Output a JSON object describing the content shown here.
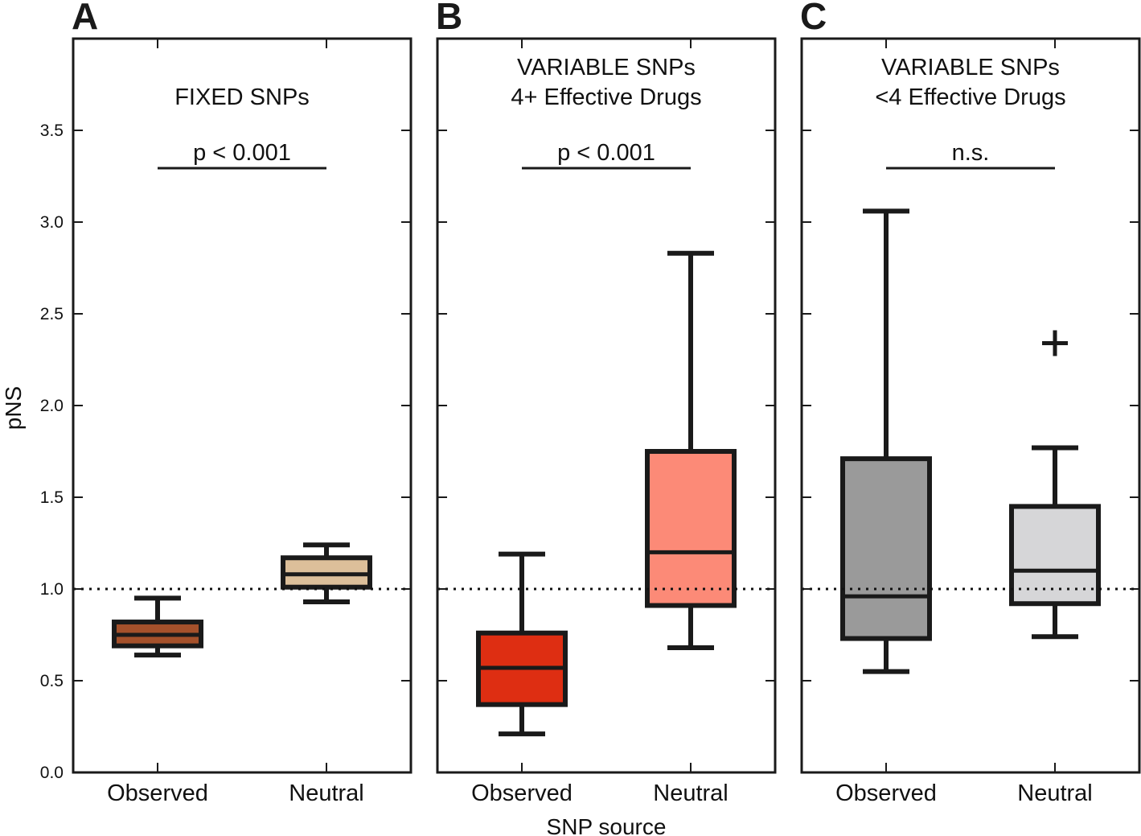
{
  "figure": {
    "ylabel": "pNS",
    "xlabel": "SNP source",
    "reference_line": 1.0
  },
  "chart_data": [
    {
      "type": "box",
      "panel": "A",
      "title_lines": [
        "FIXED SNPs"
      ],
      "significance": "p < 0.001",
      "ylabel": "pNS",
      "xlabel": "",
      "ylim": [
        0,
        4.0
      ],
      "yticks": [
        "0.0",
        "0.5",
        "1.0",
        "1.5",
        "2.0",
        "2.5",
        "3.0",
        "3.5"
      ],
      "categories": [
        "Observed",
        "Neutral"
      ],
      "boxes": [
        {
          "name": "Observed",
          "whisker_low": 0.64,
          "q1": 0.69,
          "median": 0.75,
          "q3": 0.82,
          "whisker_high": 0.95,
          "outliers": [],
          "color": "#a5512b"
        },
        {
          "name": "Neutral",
          "whisker_low": 0.93,
          "q1": 1.01,
          "median": 1.08,
          "q3": 1.17,
          "whisker_high": 1.24,
          "outliers": [],
          "color": "#dcbf9a"
        }
      ]
    },
    {
      "type": "box",
      "panel": "B",
      "title_lines": [
        "VARIABLE SNPs",
        "4+ Effective Drugs"
      ],
      "significance": "p < 0.001",
      "ylabel": "",
      "xlabel": "SNP source",
      "ylim": [
        0,
        4.0
      ],
      "yticks": [],
      "categories": [
        "Observed",
        "Neutral"
      ],
      "boxes": [
        {
          "name": "Observed",
          "whisker_low": 0.21,
          "q1": 0.37,
          "median": 0.57,
          "q3": 0.76,
          "whisker_high": 1.19,
          "outliers": [],
          "color": "#de2e12"
        },
        {
          "name": "Neutral",
          "whisker_low": 0.68,
          "q1": 0.91,
          "median": 1.2,
          "q3": 1.75,
          "whisker_high": 2.83,
          "outliers": [],
          "color": "#fc8a77"
        }
      ]
    },
    {
      "type": "box",
      "panel": "C",
      "title_lines": [
        "VARIABLE SNPs",
        "<4 Effective Drugs"
      ],
      "significance": "n.s.",
      "ylabel": "",
      "xlabel": "",
      "ylim": [
        0,
        4.0
      ],
      "yticks": [],
      "categories": [
        "Observed",
        "Neutral"
      ],
      "boxes": [
        {
          "name": "Observed",
          "whisker_low": 0.55,
          "q1": 0.73,
          "median": 0.96,
          "q3": 1.71,
          "whisker_high": 3.06,
          "outliers": [],
          "color": "#9a9a9a"
        },
        {
          "name": "Neutral",
          "whisker_low": 0.74,
          "q1": 0.92,
          "median": 1.1,
          "q3": 1.45,
          "whisker_high": 1.77,
          "outliers": [
            2.34
          ],
          "color": "#d6d6d8"
        }
      ]
    }
  ]
}
